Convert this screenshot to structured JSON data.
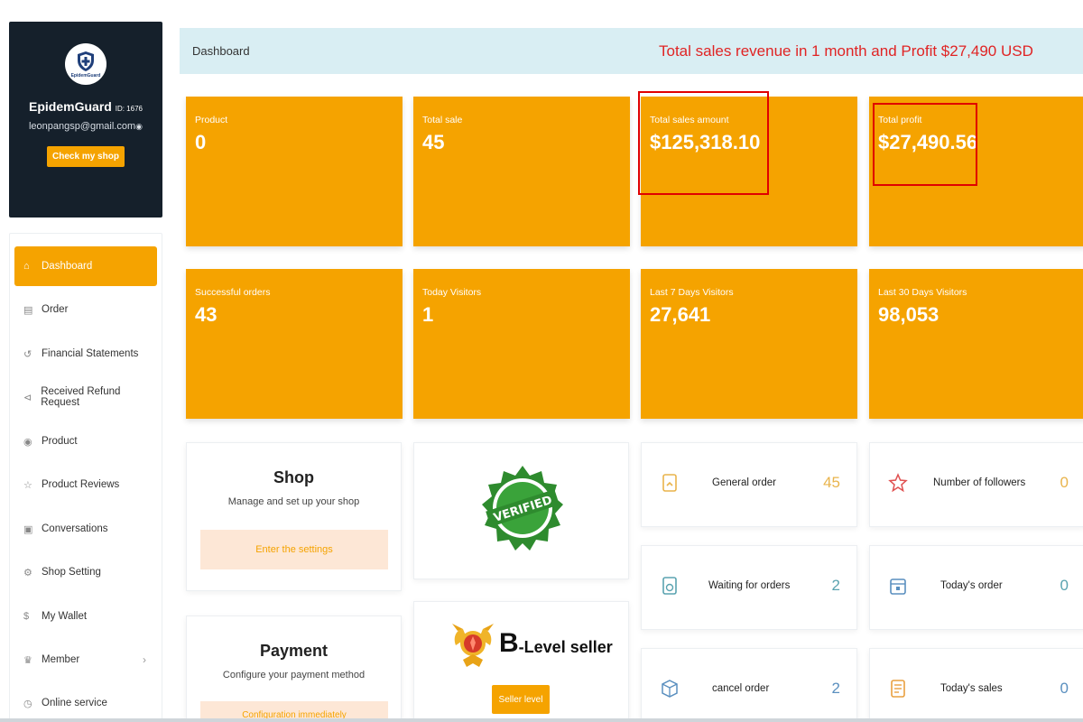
{
  "profile": {
    "logo_text": "EpidemGuard",
    "shop_name": "EpidemGuard",
    "shop_id": "ID: 1676",
    "email": "leonpangsp@gmail.com",
    "check_shop_label": "Check my shop"
  },
  "menu": [
    {
      "label": "Dashboard",
      "icon": "home-icon",
      "active": true
    },
    {
      "label": "Order",
      "icon": "order-icon"
    },
    {
      "label": "Financial Statements",
      "icon": "history-icon"
    },
    {
      "label": "Received Refund Request",
      "icon": "refund-icon"
    },
    {
      "label": "Product",
      "icon": "product-icon"
    },
    {
      "label": "Product Reviews",
      "icon": "star-icon"
    },
    {
      "label": "Conversations",
      "icon": "chat-icon"
    },
    {
      "label": "Shop Setting",
      "icon": "gear-icon"
    },
    {
      "label": "My Wallet",
      "icon": "dollar-icon"
    },
    {
      "label": "Member",
      "icon": "member-icon",
      "has_chevron": true
    },
    {
      "label": "Online service",
      "icon": "support-icon"
    }
  ],
  "header": {
    "title": "Dashboard",
    "note": "Total sales revenue in 1 month and Profit $27,490 USD"
  },
  "stats": [
    {
      "label": "Product",
      "value": "0"
    },
    {
      "label": "Total sale",
      "value": "45"
    },
    {
      "label": "Total sales amount",
      "value": "$125,318.10"
    },
    {
      "label": "Total profit",
      "value": "$27,490.56"
    },
    {
      "label": "Successful orders",
      "value": "43"
    },
    {
      "label": "Today Visitors",
      "value": "1"
    },
    {
      "label": "Last 7 Days Visitors",
      "value": "27,641"
    },
    {
      "label": "Last 30 Days Visitors",
      "value": "98,053"
    }
  ],
  "shop_card": {
    "title": "Shop",
    "subtitle": "Manage and set up your shop",
    "button": "Enter the settings"
  },
  "payment_card": {
    "title": "Payment",
    "subtitle": "Configure your payment method",
    "button": "Configuration immediately"
  },
  "verified_badge": {
    "text": "VERIFIED"
  },
  "seller": {
    "level_letter": "B",
    "level_text": "-Level seller",
    "button": "Seller level"
  },
  "metrics": [
    {
      "label": "General order",
      "value": "45",
      "icon": "clipboard-icon",
      "color": "#e9b44c"
    },
    {
      "label": "Number of followers",
      "value": "0",
      "icon": "star-outline-icon",
      "color": "#e9b44c"
    },
    {
      "label": "Waiting for orders",
      "value": "2",
      "icon": "pending-order-icon",
      "color": "#5aa3b0"
    },
    {
      "label": "Today's order",
      "value": "0",
      "icon": "calendar-icon",
      "color": "#5aa3b0"
    },
    {
      "label": "cancel order",
      "value": "2",
      "icon": "box-icon",
      "color": "#5a8fbf"
    },
    {
      "label": "Today's sales",
      "value": "0",
      "icon": "receipt-icon",
      "color": "#5a8fbf"
    }
  ],
  "colors": {
    "accent": "#f5a300",
    "sidebar_dark": "#15202b",
    "header_bg": "#d9eef3",
    "highlight": "#e00000"
  }
}
